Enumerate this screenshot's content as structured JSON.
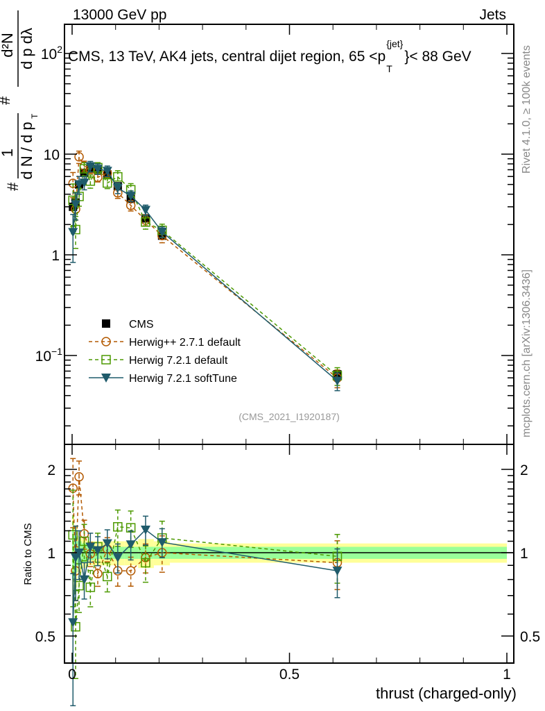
{
  "header": {
    "left": "13000 GeV pp",
    "right": "Jets"
  },
  "side_texts": {
    "rivet": "Rivet 4.1.0, ≥ 100k events",
    "mcplots": "mcplots.cern.ch [arXiv:1306.3436]"
  },
  "chart_data": {
    "type": "scatter",
    "title": "CMS, 13 TeV, AK4 jets, central dijet region, 65 <p_T^{jet}< 88 GeV",
    "title_parts": {
      "main": "CMS, 13 TeV, AK4 jets, central dijet region, 65 <p",
      "sup": "{jet}",
      "sub": "T",
      "end": "}< 88 GeV"
    },
    "ylabel": "1/(dN/dp_T) d²N/(dp_T dλ)",
    "ylabel_parts": {
      "frac1_num": "1",
      "frac1_den": "d N / d p",
      "frac2_num": "d²N",
      "frac2_den": "d p  dλ",
      "sub": "T",
      "hash": "#"
    },
    "xlabel": "thrust (charged-only)",
    "ratio_ylabel": "Ratio to CMS",
    "watermark": "(CMS_2021_I1920187)",
    "xlim": [
      -0.02,
      1.02
    ],
    "ylim_log": [
      0.0133,
      200
    ],
    "ratio_ylim_log": [
      0.4,
      2.46
    ],
    "x_ticks": [
      {
        "v": 0,
        "label": "0"
      },
      {
        "v": 0.5,
        "label": "0.5"
      },
      {
        "v": 1,
        "label": "1"
      }
    ],
    "y_ticks": [
      {
        "v": 100,
        "base": "10",
        "exp": "2"
      },
      {
        "v": 10,
        "base": "10",
        "exp": ""
      },
      {
        "v": 1,
        "base": "1",
        "exp": ""
      },
      {
        "v": 0.1,
        "base": "10",
        "exp": "−1"
      }
    ],
    "ratio_ticks": [
      {
        "v": 2,
        "label": "2"
      },
      {
        "v": 1,
        "label": "1"
      },
      {
        "v": 0.5,
        "label": "0.5"
      }
    ],
    "x": [
      0.002,
      0.008,
      0.016,
      0.028,
      0.042,
      0.059,
      0.081,
      0.105,
      0.135,
      0.169,
      0.207,
      0.61
    ],
    "cms": {
      "name": "CMS",
      "values": [
        3.0,
        3.3,
        5.0,
        6.5,
        7.2,
        7.0,
        6.3,
        4.8,
        3.6,
        2.3,
        1.55,
        0.065
      ],
      "band_inner": [
        0.2,
        0.15,
        0.1,
        0.08,
        0.06,
        0.05,
        0.05,
        0.05,
        0.05,
        0.05,
        0.05,
        0.05
      ],
      "band_outer": [
        0.35,
        0.25,
        0.15,
        0.12,
        0.1,
        0.1,
        0.1,
        0.1,
        0.1,
        0.12,
        0.1,
        0.08
      ]
    },
    "series": [
      {
        "name": "Herwig++ 2.7.1 default",
        "color": "#b35900",
        "marker": "circle",
        "dash": true,
        "ratio": [
          1.71,
          0.86,
          1.88,
          1.17,
          0.99,
          0.84,
          1.03,
          0.86,
          0.86,
          0.96,
          1.0,
          0.92
        ],
        "rel_err": [
          0.28,
          0.22,
          0.14,
          0.12,
          0.1,
          0.1,
          0.1,
          0.12,
          0.12,
          0.12,
          0.15,
          0.2
        ]
      },
      {
        "name": "Herwig 7.2.1 default",
        "color": "#4c9900",
        "marker": "square",
        "dash": true,
        "ratio": [
          1.16,
          0.54,
          0.76,
          1.1,
          0.75,
          1.05,
          0.82,
          1.24,
          1.23,
          0.92,
          1.13,
          0.97
        ],
        "rel_err": [
          0.45,
          0.35,
          0.2,
          0.15,
          0.15,
          0.12,
          0.12,
          0.15,
          0.15,
          0.15,
          0.15,
          0.2
        ]
      },
      {
        "name": "Herwig 7.2.1 softTune",
        "color": "#1f5b6b",
        "marker": "triangle",
        "dash": false,
        "ratio": [
          0.56,
          0.96,
          1.0,
          0.8,
          1.05,
          1.02,
          1.08,
          0.96,
          1.07,
          1.21,
          1.09,
          0.86
        ],
        "rel_err": [
          0.5,
          0.3,
          0.2,
          0.15,
          0.12,
          0.12,
          0.12,
          0.12,
          0.12,
          0.12,
          0.12,
          0.2
        ]
      }
    ],
    "legend_position": "lower-left",
    "colors": {
      "band_outer": "#ffff99",
      "band_inner": "#99ff99"
    }
  }
}
